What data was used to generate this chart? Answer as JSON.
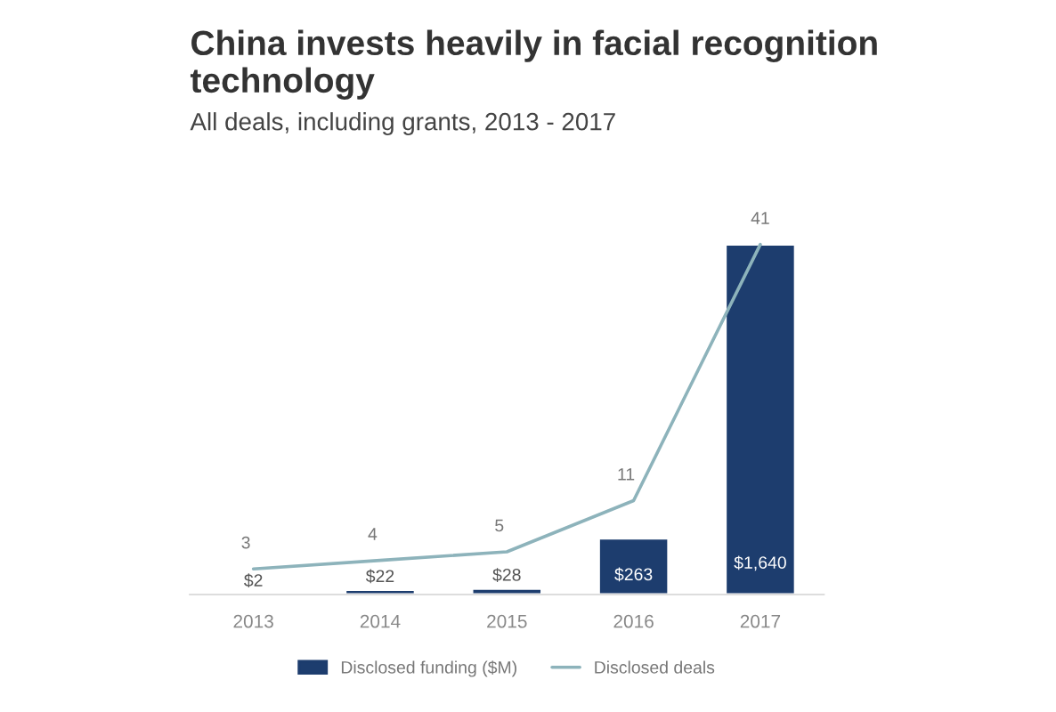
{
  "chart_data": {
    "type": "bar",
    "title": "China invests heavily in facial recognition technology",
    "subtitle": "All deals, including grants, 2013 - 2017",
    "categories": [
      "2013",
      "2014",
      "2015",
      "2016",
      "2017"
    ],
    "series": [
      {
        "name": "Disclosed funding ($M)",
        "color": "#1d3d6e",
        "values": [
          2,
          22,
          28,
          263,
          1640
        ],
        "value_labels": [
          "$2",
          "$22",
          "$28",
          "$263",
          "$1,640"
        ]
      },
      {
        "name": "Disclosed deals",
        "type": "line",
        "axis": "y2",
        "color": "#8db3bb",
        "values": [
          3,
          4,
          5,
          11,
          41
        ],
        "value_labels": [
          "3",
          "4",
          "5",
          "11",
          "41"
        ]
      }
    ],
    "tick_labels": "x",
    "grid": false,
    "legend": "bottom",
    "marker": "none",
    "line_style": "solid"
  }
}
